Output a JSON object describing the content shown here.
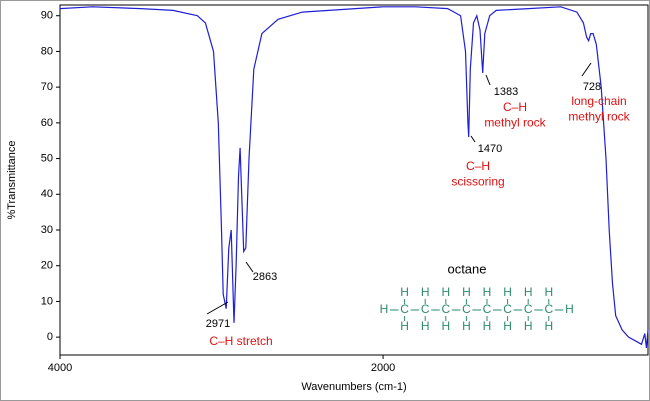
{
  "chart_data": {
    "type": "line",
    "x_label": "Wavenumbers (cm-1)",
    "y_label": "%Transmittance",
    "color": "#1f1fd6",
    "xlim": [
      4000,
      360
    ],
    "ylim": [
      -5,
      93
    ],
    "xticks": [
      4000,
      2000
    ],
    "yticks": [
      0,
      10,
      20,
      30,
      40,
      50,
      60,
      70,
      80,
      90
    ],
    "x": [
      4000,
      3800,
      3500,
      3300,
      3150,
      3100,
      3050,
      3020,
      3000,
      2990,
      2971,
      2955,
      2940,
      2923,
      2910,
      2895,
      2885,
      2875,
      2863,
      2850,
      2830,
      2800,
      2750,
      2650,
      2500,
      2000,
      1800,
      1600,
      1520,
      1490,
      1475,
      1470,
      1460,
      1440,
      1420,
      1400,
      1383,
      1370,
      1340,
      1300,
      1100,
      900,
      800,
      760,
      740,
      728,
      715,
      700,
      680,
      650,
      620,
      600,
      580,
      560,
      520,
      480,
      440,
      400,
      380,
      370,
      360
    ],
    "values": [
      92,
      92.5,
      92,
      91.5,
      90,
      88,
      80,
      60,
      30,
      12,
      8,
      25,
      30,
      4,
      20,
      45,
      53,
      40,
      24,
      25,
      50,
      75,
      85,
      89,
      91,
      92.5,
      92.5,
      92,
      90,
      80,
      60,
      56,
      75,
      88,
      90,
      86,
      74,
      85,
      90,
      91.5,
      92,
      92.5,
      91,
      88,
      84,
      83,
      85,
      85,
      82,
      70,
      50,
      30,
      15,
      6,
      2,
      0,
      -1,
      -2,
      1,
      -3,
      2
    ],
    "annotations": [
      "2971",
      "2863",
      "1470",
      "1383",
      "728"
    ],
    "notes": [
      [
        "C–H stretch"
      ],
      [
        "C–H",
        "scissoring"
      ],
      [
        "C–H",
        "methyl rock"
      ],
      [
        "long-chain",
        "methyl rock"
      ]
    ],
    "molecule_title": "octane",
    "molecule_top": [
      "H",
      "H",
      "H",
      "H",
      "H",
      "H",
      "H",
      "H"
    ],
    "molecule_chain": [
      "H",
      "C",
      "C",
      "C",
      "C",
      "C",
      "C",
      "C",
      "C",
      "H"
    ],
    "molecule_bottom": [
      "H",
      "H",
      "H",
      "H",
      "H",
      "H",
      "H",
      "H"
    ]
  }
}
